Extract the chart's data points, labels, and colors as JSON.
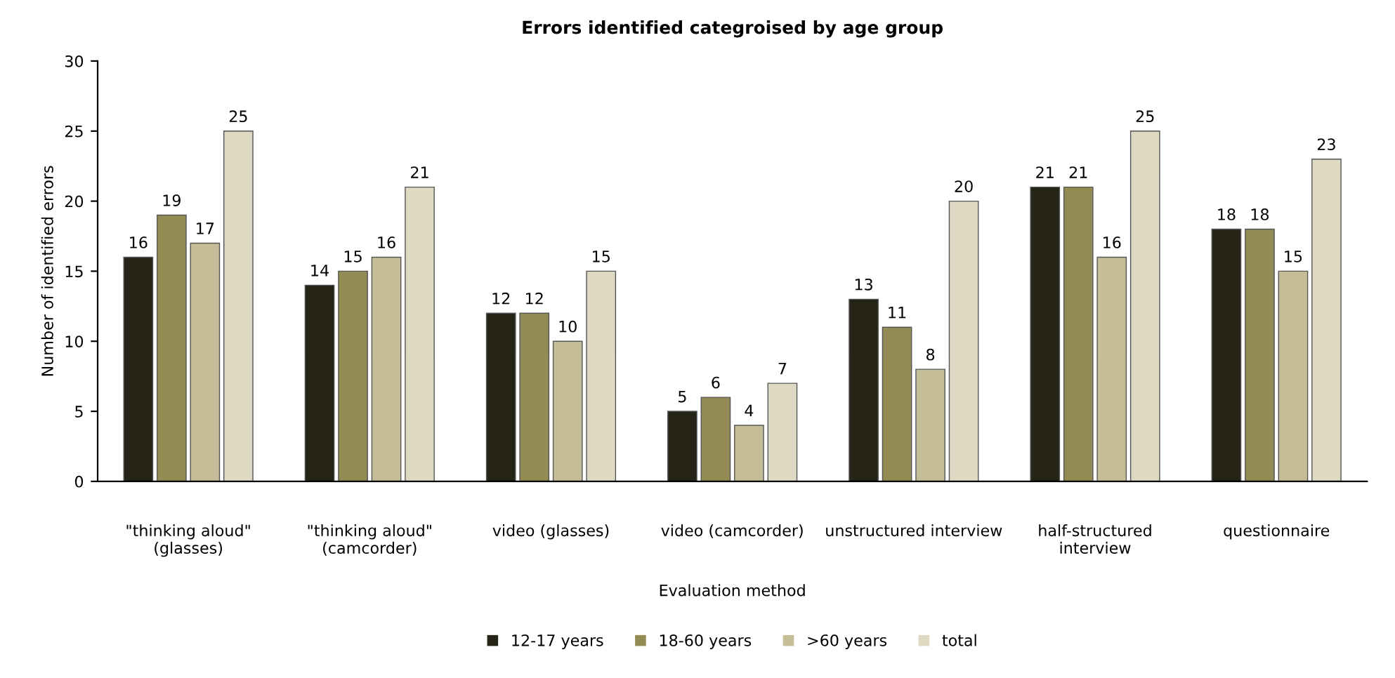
{
  "chart_data": {
    "type": "bar",
    "title": "Errors identified categroised by age group",
    "xlabel": "Evaluation method",
    "ylabel": "Number of identified errors",
    "categories": [
      "\"thinking aloud\"\n(glasses)",
      "\"thinking aloud\"\n(camcorder)",
      "video (glasses)",
      "video (camcorder)",
      "unstructured interview",
      "half-structured\ninterview",
      "questionnaire"
    ],
    "series": [
      {
        "name": "12-17 years",
        "color": "#262417",
        "values": [
          16,
          14,
          12,
          5,
          13,
          21,
          18
        ]
      },
      {
        "name": "18-60 years",
        "color": "#948a54",
        "values": [
          19,
          15,
          12,
          6,
          11,
          21,
          18
        ]
      },
      {
        "name": ">60 years",
        "color": "#c4bd97",
        "values": [
          17,
          16,
          10,
          4,
          8,
          16,
          15
        ]
      },
      {
        "name": "total",
        "color": "#ddd9c3",
        "values": [
          25,
          21,
          15,
          7,
          20,
          25,
          23
        ]
      }
    ],
    "ylim": [
      0,
      30
    ],
    "yticks": [
      0,
      5,
      10,
      15,
      20,
      25,
      30
    ],
    "grid": false,
    "legend": "bottom",
    "data_labels": true
  }
}
